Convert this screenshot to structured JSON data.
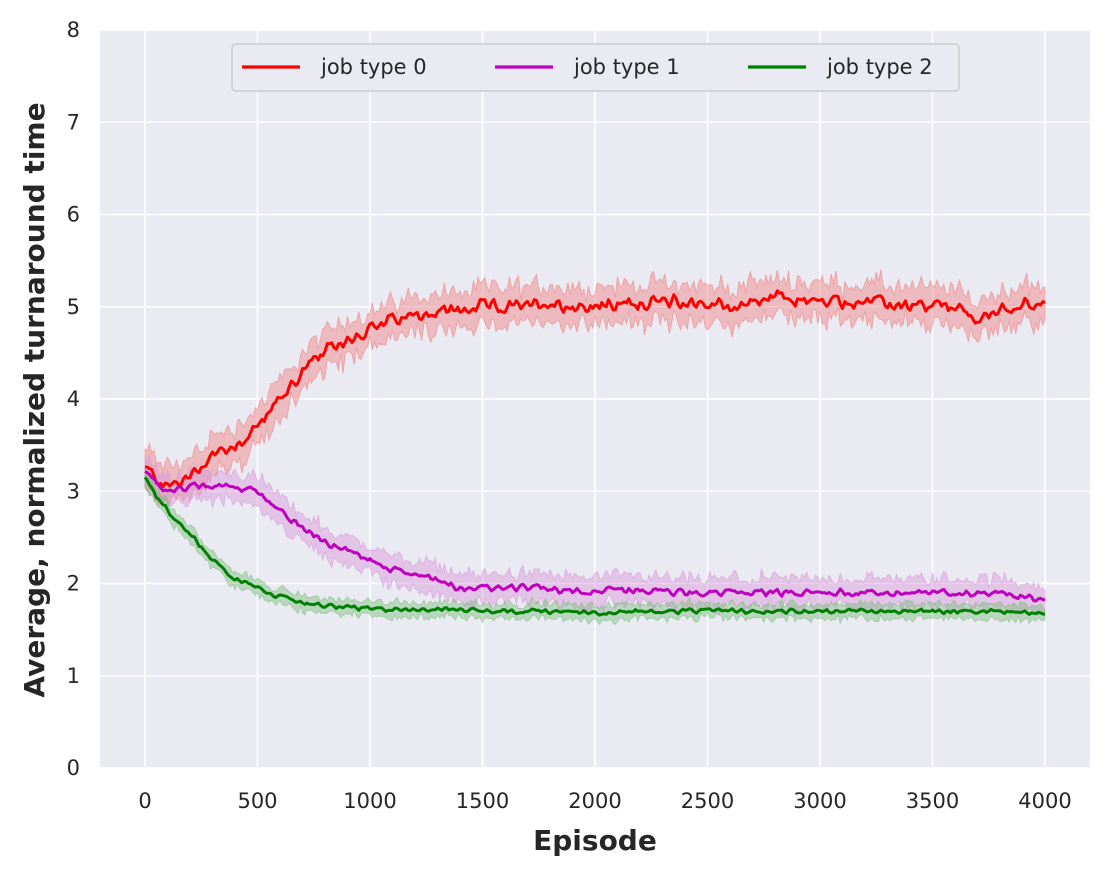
{
  "chart_data": {
    "type": "line",
    "title": "",
    "xlabel": "Episode",
    "ylabel": "Average, normalized turnaround time",
    "xlim": [
      -200,
      4200
    ],
    "ylim": [
      0,
      8
    ],
    "xticks": [
      0,
      500,
      1000,
      1500,
      2000,
      2500,
      3000,
      3500,
      4000
    ],
    "yticks": [
      0,
      1,
      2,
      3,
      4,
      5,
      6,
      7,
      8
    ],
    "grid": true,
    "legend": {
      "position": "top-center",
      "columns": 3
    },
    "series": [
      {
        "name": "job type 0",
        "color": "#ff0000",
        "band_color": "#f08080",
        "x": [
          0,
          100,
          200,
          300,
          400,
          500,
          600,
          700,
          800,
          900,
          1000,
          1100,
          1200,
          1300,
          1400,
          1500,
          1600,
          1700,
          1800,
          1900,
          2000,
          2200,
          2400,
          2600,
          2800,
          3000,
          3200,
          3400,
          3600,
          3700,
          3800,
          3900,
          4000
        ],
        "values": [
          3.25,
          3.05,
          3.15,
          3.4,
          3.5,
          3.7,
          4.0,
          4.3,
          4.5,
          4.65,
          4.75,
          4.85,
          4.9,
          4.95,
          4.95,
          5.0,
          5.0,
          5.0,
          5.05,
          5.0,
          5.0,
          5.05,
          5.05,
          5.0,
          5.1,
          5.05,
          5.05,
          5.0,
          5.0,
          4.85,
          4.95,
          5.05,
          5.0
        ],
        "band": 0.2
      },
      {
        "name": "job type 1",
        "color": "#bf00bf",
        "band_color": "#d896d8",
        "x": [
          0,
          100,
          200,
          300,
          400,
          500,
          600,
          700,
          800,
          900,
          1000,
          1100,
          1200,
          1300,
          1400,
          1500,
          1600,
          1700,
          1800,
          1900,
          2000,
          2200,
          2400,
          2600,
          2800,
          3000,
          3200,
          3400,
          3600,
          3800,
          4000
        ],
        "values": [
          3.2,
          3.0,
          3.05,
          3.05,
          3.05,
          3.0,
          2.8,
          2.6,
          2.45,
          2.35,
          2.25,
          2.15,
          2.1,
          2.05,
          1.95,
          1.95,
          1.95,
          1.95,
          1.95,
          1.92,
          1.92,
          1.92,
          1.9,
          1.9,
          1.9,
          1.9,
          1.9,
          1.9,
          1.9,
          1.9,
          1.83
        ],
        "band": 0.15
      },
      {
        "name": "job type 2",
        "color": "#008000",
        "band_color": "#7fbf7f",
        "x": [
          0,
          50,
          100,
          150,
          200,
          250,
          300,
          400,
          500,
          600,
          700,
          800,
          900,
          1000,
          1200,
          1400,
          1600,
          1800,
          2000,
          2200,
          2400,
          2600,
          2800,
          3000,
          3200,
          3400,
          3600,
          3800,
          4000
        ],
        "values": [
          3.15,
          2.95,
          2.8,
          2.65,
          2.55,
          2.4,
          2.25,
          2.05,
          1.95,
          1.85,
          1.8,
          1.75,
          1.75,
          1.72,
          1.72,
          1.72,
          1.7,
          1.7,
          1.68,
          1.7,
          1.7,
          1.7,
          1.7,
          1.7,
          1.7,
          1.7,
          1.7,
          1.7,
          1.68
        ],
        "band": 0.08
      }
    ]
  }
}
